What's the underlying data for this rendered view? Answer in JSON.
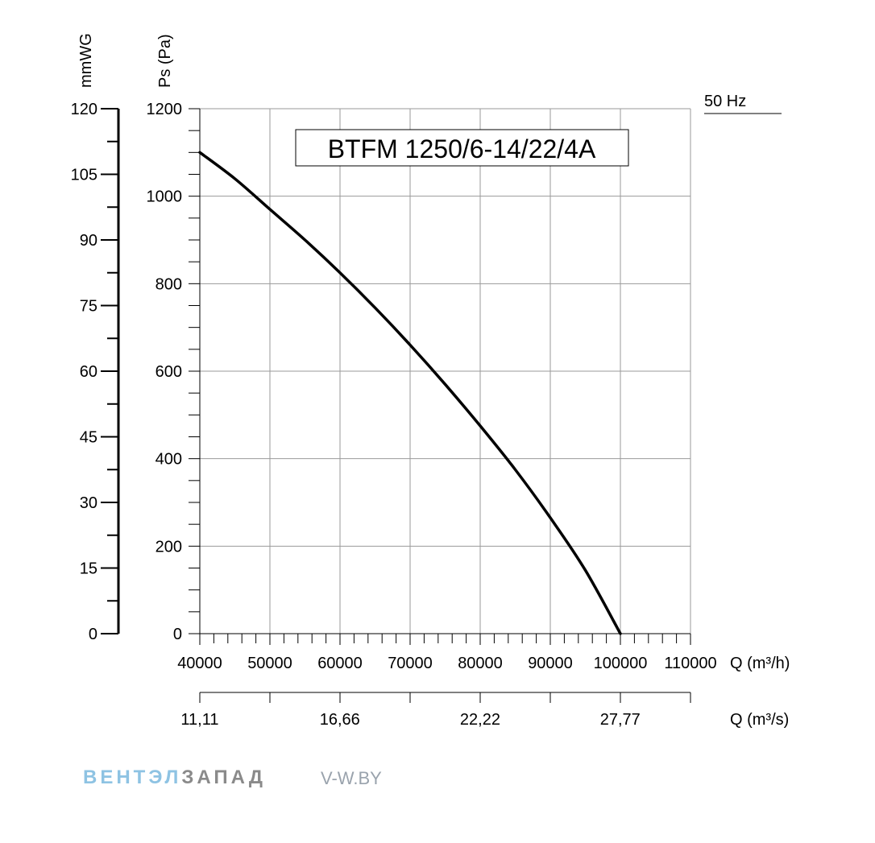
{
  "chart_data": {
    "type": "line",
    "title": "BTFM 1250/6-14/22/4A",
    "frequency_label": "50 Hz",
    "ylabel": "Ps (Pa)",
    "ylabel_secondary": "mmWG",
    "xlabel": "Q (m³/h)",
    "xlabel_secondary": "Q (m³/s)",
    "xlim": [
      40000,
      110000
    ],
    "ylim": [
      0,
      1200
    ],
    "ylim_secondary": [
      0,
      120
    ],
    "grid": true,
    "x_ticks": [
      "40000",
      "50000",
      "60000",
      "70000",
      "80000",
      "90000",
      "100000",
      "110000"
    ],
    "y_ticks": [
      "0",
      "200",
      "400",
      "600",
      "800",
      "1000",
      "1200"
    ],
    "y_ticks_secondary": [
      "0",
      "15",
      "30",
      "45",
      "60",
      "75",
      "90",
      "105",
      "120"
    ],
    "x_ticks_secondary": [
      "11,11",
      "16,66",
      "22,22",
      "27,77"
    ],
    "series": [
      {
        "x": [
          40000,
          45000,
          50000,
          55000,
          60000,
          65000,
          70000,
          75000,
          80000,
          85000,
          90000,
          95000,
          100000
        ],
        "y": [
          1100,
          1040,
          970,
          900,
          825,
          745,
          660,
          570,
          475,
          375,
          265,
          145,
          0
        ]
      }
    ],
    "line_color": "#000000"
  },
  "watermark": {
    "brand_part1": "ВЕНТЭЛ",
    "brand_part2": "ЗАПАД",
    "site": "V-W.BY"
  }
}
